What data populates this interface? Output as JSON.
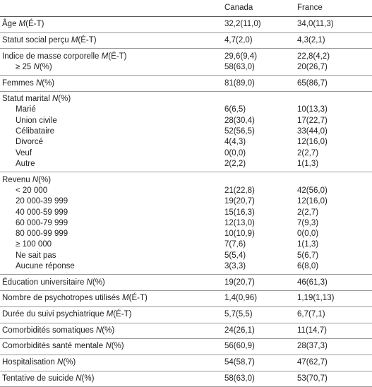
{
  "table": {
    "columns": [
      "Canada",
      "France"
    ],
    "groups": [
      {
        "rows": [
          {
            "label": "Âge",
            "stat": "M",
            "unit": "(É-T)",
            "values": [
              "32,2(11,0)",
              "34,0(11,3)"
            ]
          }
        ]
      },
      {
        "rows": [
          {
            "label": "Statut social perçu",
            "stat": "M",
            "unit": "(É-T)",
            "values": [
              "4,7(2,0)",
              "4,3(2,1)"
            ]
          }
        ]
      },
      {
        "rows": [
          {
            "label": "Indice de masse corporelle",
            "stat": "M",
            "unit": "(É-T)",
            "values": [
              "29,6(9,4)",
              "22,8(4,2)"
            ]
          },
          {
            "label": "≥ 25",
            "stat": "N",
            "unit": "(%)",
            "sub": true,
            "values": [
              "58(63,0)",
              "20(26,7)"
            ]
          }
        ]
      },
      {
        "rows": [
          {
            "label": "Femmes",
            "stat": "N",
            "unit": "(%)",
            "values": [
              "81(89,0)",
              "65(86,7)"
            ]
          }
        ]
      },
      {
        "rows": [
          {
            "label": "Statut marital",
            "stat": "N",
            "unit": "(%)"
          },
          {
            "label": "Marié",
            "sub": true,
            "values": [
              "6(6,5)",
              "10(13,3)"
            ]
          },
          {
            "label": "Union civile",
            "sub": true,
            "values": [
              "28(30,4)",
              "17(22,7)"
            ]
          },
          {
            "label": "Célibataire",
            "sub": true,
            "values": [
              "52(56,5)",
              "33(44,0)"
            ]
          },
          {
            "label": "Divorcé",
            "sub": true,
            "values": [
              "4(4,3)",
              "12(16,0)"
            ]
          },
          {
            "label": "Veuf",
            "sub": true,
            "values": [
              "0(0,0)",
              "2(2,7)"
            ]
          },
          {
            "label": "Autre",
            "sub": true,
            "values": [
              "2(2,2)",
              "1(1,3)"
            ]
          }
        ]
      },
      {
        "rows": [
          {
            "label": "Revenu",
            "stat": "N",
            "unit": "(%)"
          },
          {
            "label": "< 20 000",
            "sub": true,
            "values": [
              "21(22,8)",
              "42(56,0)"
            ]
          },
          {
            "label": "20 000-39 999",
            "sub": true,
            "values": [
              "19(20,7)",
              "12(16,0)"
            ]
          },
          {
            "label": "40 000-59 999",
            "sub": true,
            "values": [
              "15(16,3)",
              "2(2,7)"
            ]
          },
          {
            "label": "60 000-79 999",
            "sub": true,
            "values": [
              "12(13,0)",
              "7(9,3)"
            ]
          },
          {
            "label": "80 000-99 999",
            "sub": true,
            "values": [
              "10(10,9)",
              "0(0,0)"
            ]
          },
          {
            "label": "≥ 100 000",
            "sub": true,
            "values": [
              "7(7,6)",
              "1(1,3)"
            ]
          },
          {
            "label": "Ne sait pas",
            "sub": true,
            "values": [
              "5(5,4)",
              "5(6,7)"
            ]
          },
          {
            "label": "Aucune réponse",
            "sub": true,
            "values": [
              "3(3,3)",
              "6(8,0)"
            ]
          }
        ]
      },
      {
        "rows": [
          {
            "label": "Éducation universitaire",
            "stat": "N",
            "unit": "(%)",
            "values": [
              "19(20,7)",
              "46(61,3)"
            ]
          }
        ]
      },
      {
        "rows": [
          {
            "label": "Nombre de psychotropes utilisés",
            "stat": "M",
            "unit": "(É-T)",
            "values": [
              "1,4(0,96)",
              "1,19(1,13)"
            ]
          }
        ]
      },
      {
        "rows": [
          {
            "label": "Durée du suivi psychiatrique",
            "stat": "M",
            "unit": "(É-T)",
            "values": [
              "5,7(5,5)",
              "6,7(7,1)"
            ]
          }
        ]
      },
      {
        "rows": [
          {
            "label": "Comorbidités somatiques",
            "stat": "N",
            "unit": "(%)",
            "values": [
              "24(26,1)",
              "11(14,7)"
            ]
          }
        ]
      },
      {
        "rows": [
          {
            "label": "Comorbidités santé mentale",
            "stat": "N",
            "unit": "(%)",
            "values": [
              "56(60,9)",
              "28(37,3)"
            ]
          }
        ]
      },
      {
        "rows": [
          {
            "label": "Hospitalisation",
            "stat": "N",
            "unit": "(%)",
            "values": [
              "54(58,7)",
              "47(62,7)"
            ]
          }
        ]
      },
      {
        "rows": [
          {
            "label": "Tentative de suicide",
            "stat": "N",
            "unit": "(%)",
            "values": [
              "58(63,0)",
              "53(70,7)"
            ]
          }
        ]
      }
    ]
  }
}
